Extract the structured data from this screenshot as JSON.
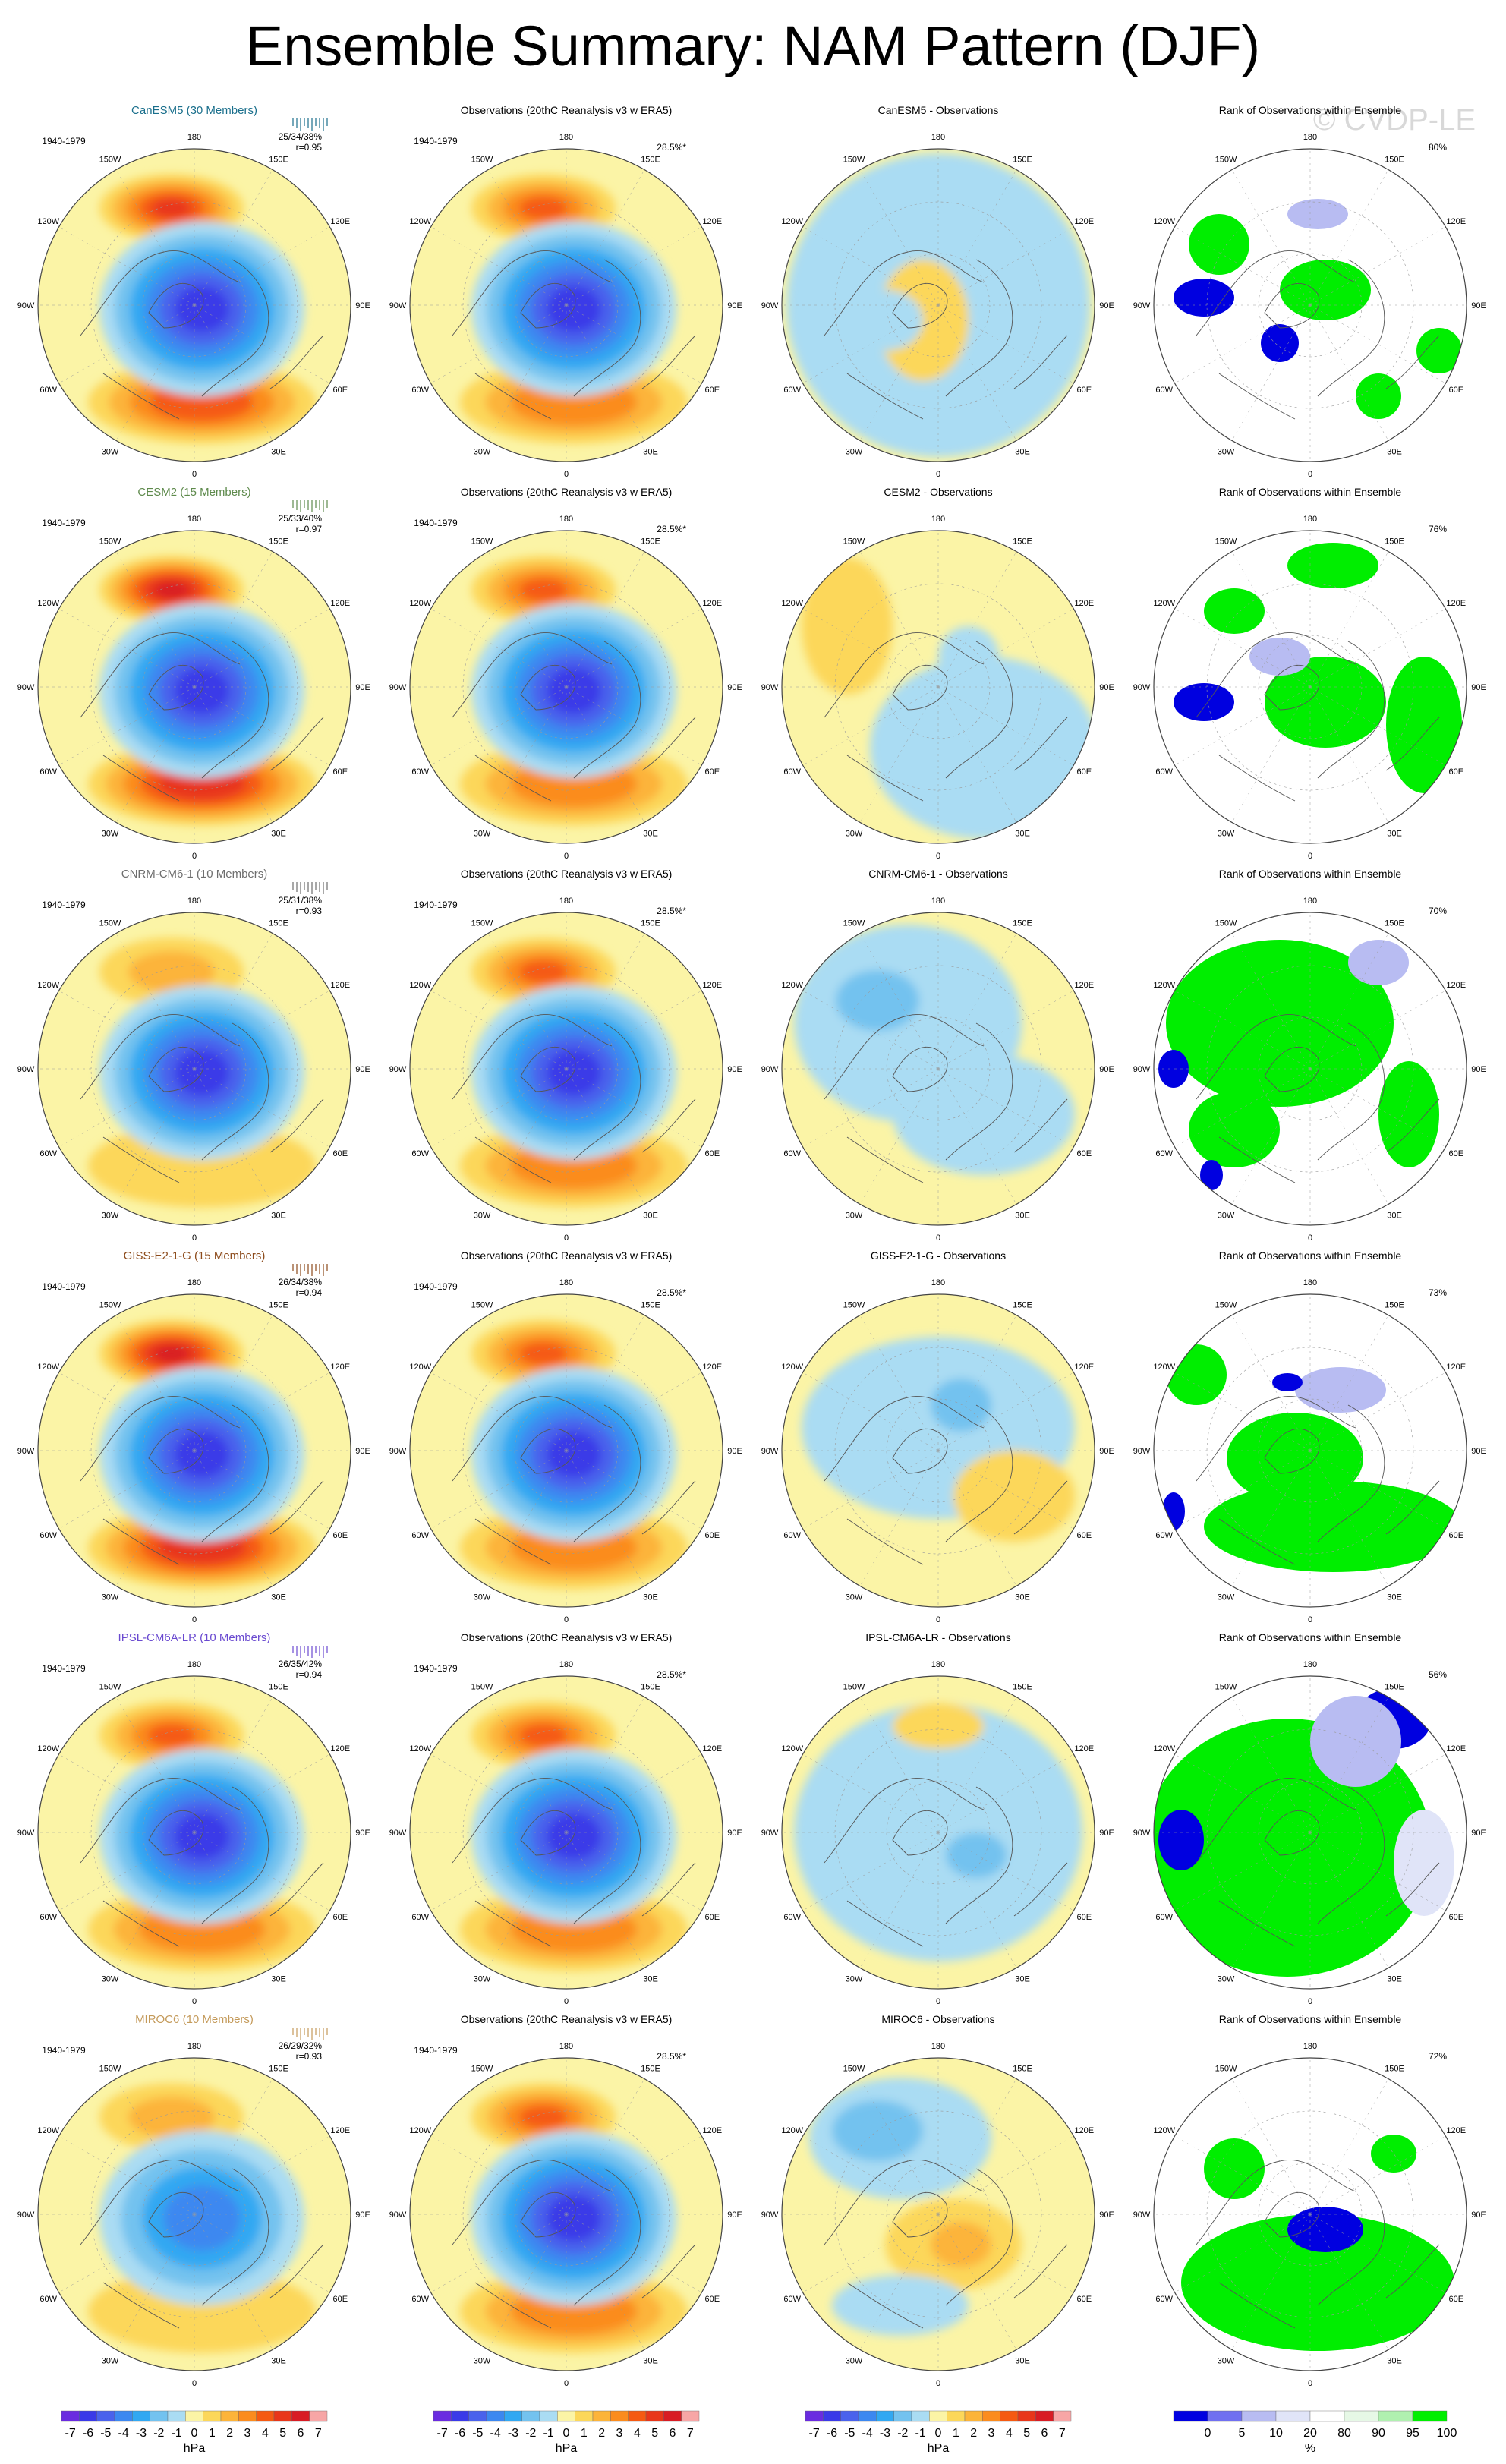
{
  "title": "Ensemble Summary: NAM Pattern (DJF)",
  "watermark": "© CVDP-LE",
  "period": "1940-1979",
  "obs_title": "Observations (20thC Reanalysis v3 w ERA5)",
  "obs_pct": "28.5%*",
  "rank_title": "Rank of Observations within Ensemble",
  "lon_labels": [
    "180",
    "150E",
    "120E",
    "90E",
    "60E",
    "30E",
    "0",
    "30W",
    "60W",
    "90W",
    "120W",
    "150W"
  ],
  "palette": {
    "diff": [
      "#6a2ce0",
      "#3a3ae8",
      "#4a62ec",
      "#3c88f0",
      "#31a8f2",
      "#73c2ef",
      "#aadcf3",
      "#fbf4a6",
      "#fcd75a",
      "#fcb43a",
      "#fb8c1e",
      "#f55a12",
      "#e8361a",
      "#d81c24",
      "#f7a6a6"
    ],
    "rank": [
      "#0000e0",
      "#7070f0",
      "#b8bcf2",
      "#e0e4f8",
      "#ffffff",
      "#e6f8e6",
      "#b0f0b0",
      "#00ee00"
    ],
    "positive": "#fcd75a",
    "negative": "#63bdee",
    "background": "#fbf4a6"
  },
  "rows": [
    {
      "model": "CanESM5 (30 Members)",
      "model_color": "#1a6f8c",
      "stats": "25/34/38%",
      "corr": "r=0.95",
      "diff_title": "CanESM5 - Observations",
      "rank_pct": "80%"
    },
    {
      "model": "CESM2 (15 Members)",
      "model_color": "#5e8a4c",
      "stats": "25/33/40%",
      "corr": "r=0.97",
      "diff_title": "CESM2 - Observations",
      "rank_pct": "76%"
    },
    {
      "model": "CNRM-CM6-1 (10 Members)",
      "model_color": "#6e6e6e",
      "stats": "25/31/38%",
      "corr": "r=0.93",
      "diff_title": "CNRM-CM6-1 - Observations",
      "rank_pct": "70%"
    },
    {
      "model": "GISS-E2-1-G (15 Members)",
      "model_color": "#8c4a1a",
      "stats": "26/34/38%",
      "corr": "r=0.94",
      "diff_title": "GISS-E2-1-G - Observations",
      "rank_pct": "73%"
    },
    {
      "model": "IPSL-CM6A-LR (10 Members)",
      "model_color": "#6a4ad0",
      "stats": "26/35/42%",
      "corr": "r=0.94",
      "diff_title": "IPSL-CM6A-LR - Observations",
      "rank_pct": "56%"
    },
    {
      "model": "MIROC6 (10 Members)",
      "model_color": "#c49a5a",
      "stats": "26/29/32%",
      "corr": "r=0.93",
      "diff_title": "MIROC6 - Observations",
      "rank_pct": "72%"
    }
  ],
  "colorbars": [
    {
      "labels": [
        "-7",
        "-6",
        "-5",
        "-4",
        "-3",
        "-2",
        "-1",
        "0",
        "1",
        "2",
        "3",
        "4",
        "5",
        "6",
        "7"
      ],
      "unit": "hPa"
    },
    {
      "labels": [
        "-7",
        "-6",
        "-5",
        "-4",
        "-3",
        "-2",
        "-1",
        "0",
        "1",
        "2",
        "3",
        "4",
        "5",
        "6",
        "7"
      ],
      "unit": "hPa"
    },
    {
      "labels": [
        "-7",
        "-6",
        "-5",
        "-4",
        "-3",
        "-2",
        "-1",
        "0",
        "1",
        "2",
        "3",
        "4",
        "5",
        "6",
        "7"
      ],
      "unit": "hPa"
    },
    {
      "labels": [
        "0",
        "5",
        "10",
        "20",
        "80",
        "90",
        "95",
        "100"
      ],
      "unit": "%"
    }
  ],
  "chart_data": {
    "type": "heatmap",
    "title": "Ensemble Summary: NAM Pattern (DJF)",
    "projection": "north polar stereographic",
    "period": "1940-1979",
    "units": "hPa",
    "contour_levels": [
      -7,
      -6,
      -5,
      -4,
      -3,
      -2,
      -1,
      0,
      1,
      2,
      3,
      4,
      5,
      6,
      7
    ],
    "rank_levels": [
      0,
      5,
      10,
      20,
      80,
      90,
      95,
      100
    ],
    "models": [
      {
        "name": "CanESM5",
        "members": 30,
        "pct_explained_min_mean_max": [
          25,
          34,
          38
        ],
        "pattern_corr": 0.95,
        "obs_rank_coverage_pct": 80,
        "pacific_high_max_hpa": 5,
        "arctic_low_min_hpa": -6
      },
      {
        "name": "CESM2",
        "members": 15,
        "pct_explained_min_mean_max": [
          25,
          33,
          40
        ],
        "pattern_corr": 0.97,
        "obs_rank_coverage_pct": 76,
        "pacific_high_max_hpa": 6,
        "arctic_low_min_hpa": -6
      },
      {
        "name": "CNRM-CM6-1",
        "members": 10,
        "pct_explained_min_mean_max": [
          25,
          31,
          38
        ],
        "pattern_corr": 0.93,
        "obs_rank_coverage_pct": 70,
        "pacific_high_max_hpa": 2,
        "arctic_low_min_hpa": -6
      },
      {
        "name": "GISS-E2-1-G",
        "members": 15,
        "pct_explained_min_mean_max": [
          26,
          34,
          38
        ],
        "pattern_corr": 0.94,
        "obs_rank_coverage_pct": 73,
        "pacific_high_max_hpa": 6,
        "arctic_low_min_hpa": -6
      },
      {
        "name": "IPSL-CM6A-LR",
        "members": 10,
        "pct_explained_min_mean_max": [
          26,
          35,
          42
        ],
        "pattern_corr": 0.94,
        "obs_rank_coverage_pct": 56,
        "pacific_high_max_hpa": 4,
        "arctic_low_min_hpa": -6
      },
      {
        "name": "MIROC6",
        "members": 10,
        "pct_explained_min_mean_max": [
          26,
          29,
          32
        ],
        "pattern_corr": 0.93,
        "obs_rank_coverage_pct": 72,
        "pacific_high_max_hpa": 2,
        "arctic_low_min_hpa": -4
      }
    ],
    "observations": {
      "name": "20thC Reanalysis v3 w ERA5",
      "pct_explained": 28.5,
      "pacific_high_max_hpa": 4,
      "arctic_low_min_hpa": -6
    }
  }
}
